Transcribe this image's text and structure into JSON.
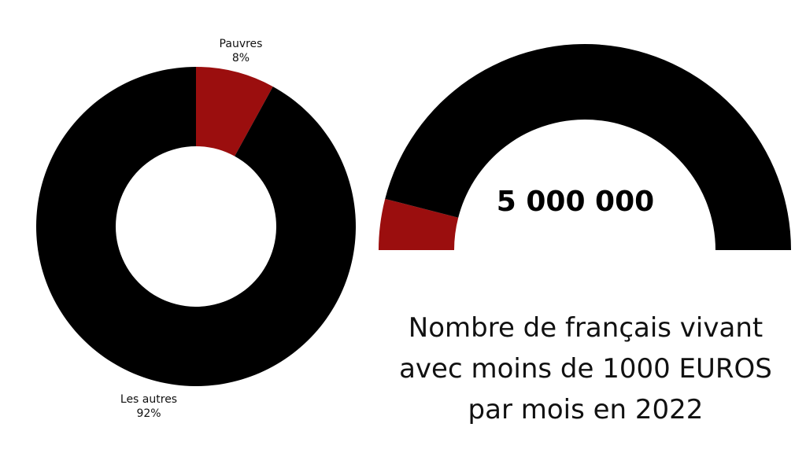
{
  "chart_data": [
    {
      "type": "pie",
      "variant": "donut",
      "slices": [
        {
          "label": "Pauvres",
          "value_label": "8%",
          "value": 8,
          "color": "#9b0e0e"
        },
        {
          "label": "Les autres",
          "value_label": "92%",
          "value": 92,
          "color": "#000000"
        }
      ]
    },
    {
      "type": "pie",
      "variant": "half-donut gauge",
      "center_value": "5 000 000",
      "slices": [
        {
          "value": 8,
          "color": "#9b0e0e"
        },
        {
          "value": 92,
          "color": "#000000"
        }
      ]
    }
  ],
  "caption": {
    "lines": [
      "Nombre de français vivant",
      "avec moins de 1000 EUROS",
      "par mois en 2022"
    ]
  }
}
